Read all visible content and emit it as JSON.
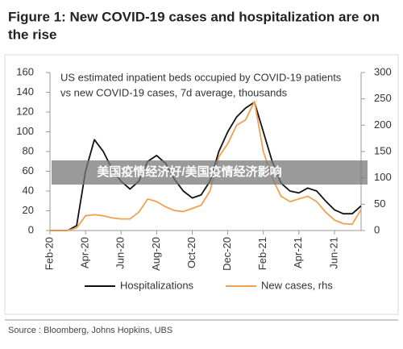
{
  "chart_data": {
    "type": "line",
    "title": [
      "Figure 1: New COVID-19 cases and hospitalization are on",
      "the rise"
    ],
    "inner_title": [
      "US estimated inpatient beds occupied by COVID-19 patients",
      "vs new COVID-19 cases, 7d average, thousands"
    ],
    "categories": [
      "Feb-20",
      null,
      null,
      null,
      "Apr-20",
      null,
      null,
      null,
      "Jun-20",
      null,
      null,
      null,
      "Aug-20",
      null,
      null,
      null,
      "Oct-20",
      null,
      null,
      null,
      "Dec-20",
      null,
      null,
      null,
      "Feb-21",
      null,
      null,
      null,
      "Apr-21",
      null,
      null,
      null,
      "Jun-21",
      null,
      null,
      null
    ],
    "series": [
      {
        "name": "Hospitalizations",
        "color": "#111111",
        "axis": "y",
        "values": [
          0,
          0,
          0,
          5,
          60,
          92,
          80,
          62,
          50,
          42,
          50,
          70,
          76,
          68,
          52,
          40,
          33,
          36,
          50,
          80,
          100,
          115,
          124,
          130,
          100,
          70,
          48,
          40,
          38,
          43,
          40,
          30,
          21,
          17,
          17,
          25
        ]
      },
      {
        "name": "New cases, rhs",
        "color": "#f0a050",
        "axis": "y2",
        "values": [
          0,
          0,
          0,
          5,
          28,
          30,
          28,
          24,
          22,
          22,
          35,
          60,
          55,
          45,
          38,
          36,
          42,
          48,
          75,
          140,
          165,
          200,
          210,
          245,
          150,
          100,
          65,
          55,
          60,
          65,
          55,
          35,
          20,
          13,
          12,
          40
        ]
      }
    ],
    "ylim": [
      0,
      160
    ],
    "yticks": [
      0,
      20,
      40,
      60,
      80,
      100,
      120,
      140,
      160
    ],
    "y2lim": [
      0,
      300
    ],
    "y2ticks": [
      0,
      50,
      100,
      150,
      200,
      250,
      300
    ],
    "grid": false,
    "source": "Source : Bloomberg, Johns Hopkins, UBS",
    "watermark": "美国疫情经济好/美国疫情经济影响"
  }
}
